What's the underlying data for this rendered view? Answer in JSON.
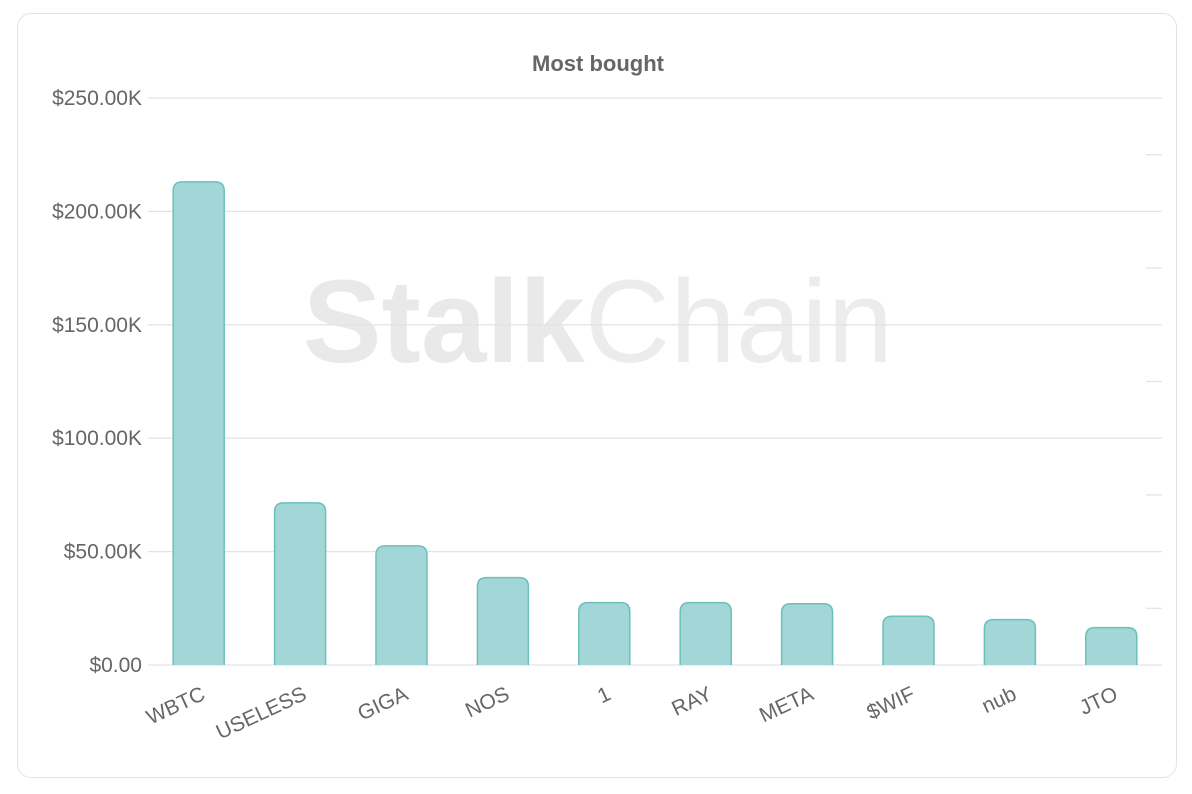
{
  "card": {
    "watermark_bold": "Stalk",
    "watermark_light": "Chain"
  },
  "chart_data": {
    "type": "bar",
    "title": "Most bought",
    "xlabel": "",
    "ylabel": "",
    "categories": [
      "WBTC",
      "USELESS",
      "GIGA",
      "NOS",
      "1",
      "RAY",
      "META",
      "$WIF",
      "nub",
      "JTO"
    ],
    "values": [
      213000,
      71500,
      52500,
      38500,
      27500,
      27500,
      27000,
      21500,
      20000,
      16500
    ],
    "ylim": [
      0,
      250000
    ],
    "yticks": [
      0,
      50000,
      100000,
      150000,
      200000,
      250000
    ],
    "ytick_labels": [
      "$0.00",
      "$50.00K",
      "$100.00K",
      "$150.00K",
      "$200.00K",
      "$250.00K"
    ],
    "grid": true,
    "legend": "none",
    "colors": {
      "bar_fill": "#a3d6d6",
      "bar_stroke": "#6cc0bc",
      "grid": "#e4e4e4",
      "text": "#666666"
    }
  }
}
